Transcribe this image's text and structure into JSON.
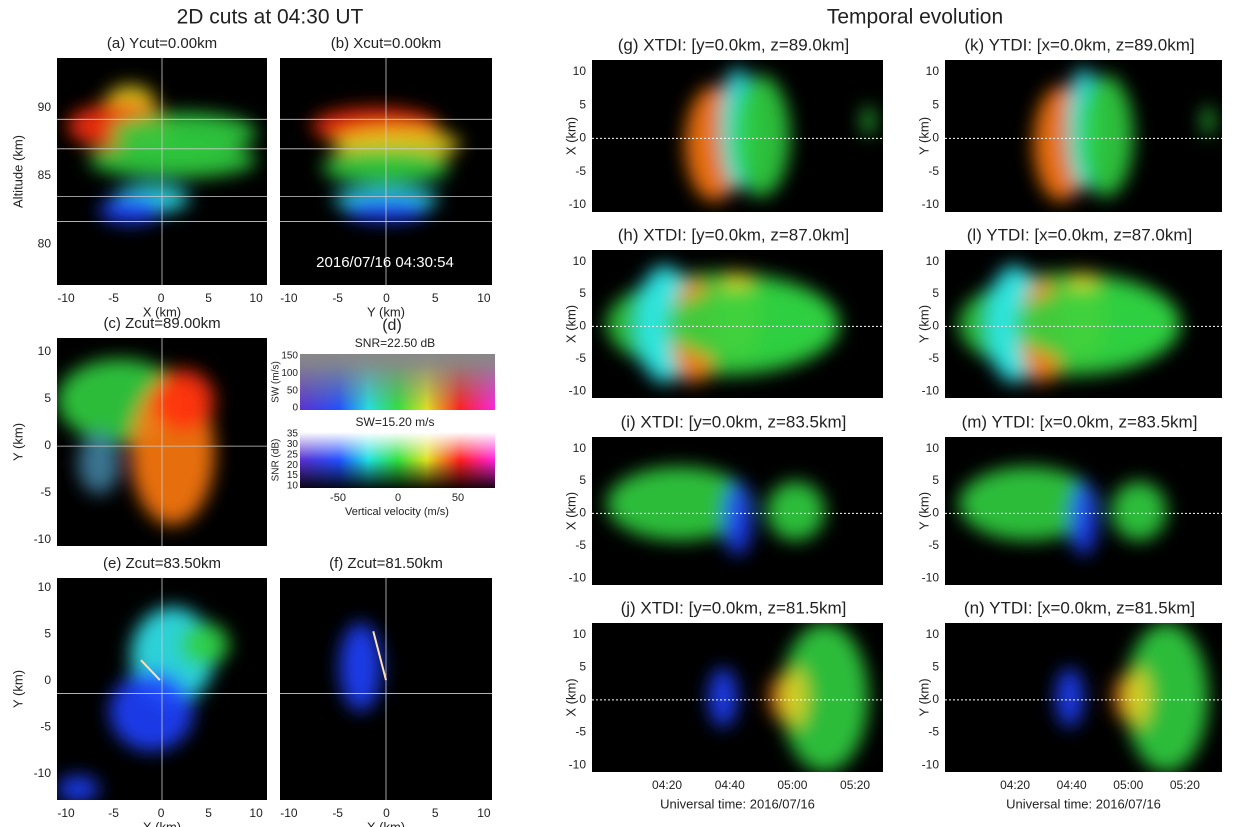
{
  "headings": {
    "left": "2D cuts at 04:30 UT",
    "right": "Temporal evolution"
  },
  "timestamp": "2016/07/16 04:30:54",
  "panels": [
    {
      "title": "(a) Ycut=0.00km",
      "xlabel": "X (km)",
      "ylabel": "Altitude (km)",
      "xticks": [
        -10,
        -5,
        0,
        5,
        10
      ],
      "yticks": [
        90,
        85,
        80
      ]
    },
    {
      "title": "(b) Xcut=0.00km",
      "xlabel": "Y (km)",
      "xticks": [
        -10,
        -5,
        0,
        5,
        10
      ]
    },
    {
      "title": "(c) Zcut=89.00km",
      "ylabel": "Y (km)",
      "yticks": [
        10,
        5,
        0,
        -5,
        -10
      ]
    },
    {
      "title": "(e) Zcut=83.50km",
      "xlabel": "X (km)",
      "ylabel": "Y (km)",
      "xticks": [
        -10,
        -5,
        0,
        5,
        10
      ],
      "yticks": [
        10,
        5,
        0,
        -5,
        -10
      ]
    },
    {
      "title": "(f) Zcut=81.50km",
      "xlabel": "X (km)",
      "xticks": [
        -10,
        -5,
        0,
        5,
        10
      ]
    },
    {
      "title": "(g) XTDI: [y=0.0km, z=89.0km]",
      "ylabel": "X (km)",
      "yticks": [
        10,
        5,
        0,
        -5,
        -10
      ]
    },
    {
      "title": "(h) XTDI: [y=0.0km, z=87.0km]",
      "ylabel": "X (km)",
      "yticks": [
        10,
        5,
        0,
        -5,
        -10
      ]
    },
    {
      "title": "(i) XTDI: [y=0.0km, z=83.5km]",
      "ylabel": "X (km)",
      "yticks": [
        10,
        5,
        0,
        -5,
        -10
      ]
    },
    {
      "title": "(j) XTDI: [y=0.0km, z=81.5km]",
      "xlabel": "Universal time: 2016/07/16",
      "ylabel": "X (km)",
      "xticks": [
        "04:20",
        "04:40",
        "05:00",
        "05:20"
      ],
      "yticks": [
        10,
        5,
        0,
        -5,
        -10
      ]
    },
    {
      "title": "(k) YTDI: [x=0.0km, z=89.0km]",
      "ylabel": "Y (km)",
      "yticks": [
        10,
        5,
        0,
        -5,
        -10
      ]
    },
    {
      "title": "(l) YTDI: [x=0.0km, z=87.0km]",
      "ylabel": "Y (km)",
      "yticks": [
        10,
        5,
        0,
        -5,
        -10
      ]
    },
    {
      "title": "(m) YTDI: [x=0.0km, z=83.5km]",
      "ylabel": "Y (km)",
      "yticks": [
        10,
        5,
        0,
        -5,
        -10
      ]
    },
    {
      "title": "(n) YTDI: [x=0.0km, z=81.5km]",
      "xlabel": "Universal time: 2016/07/16",
      "ylabel": "Y (km)",
      "xticks": [
        "04:20",
        "04:40",
        "05:00",
        "05:20"
      ],
      "yticks": [
        10,
        5,
        0,
        -5,
        -10
      ]
    }
  ],
  "colorbar": {
    "label": "(d)",
    "top_title": "SNR=22.50 dB",
    "top_ylabel": "SW (m/s)",
    "top_yticks": [
      150,
      100,
      50,
      0
    ],
    "bottom_title": "SW=15.20 m/s",
    "bottom_ylabel": "SNR (dB)",
    "bottom_yticks": [
      35,
      30,
      25,
      20,
      15,
      10
    ],
    "xticks": [
      -50,
      0,
      50
    ],
    "xlabel": "Vertical velocity (m/s)"
  }
}
